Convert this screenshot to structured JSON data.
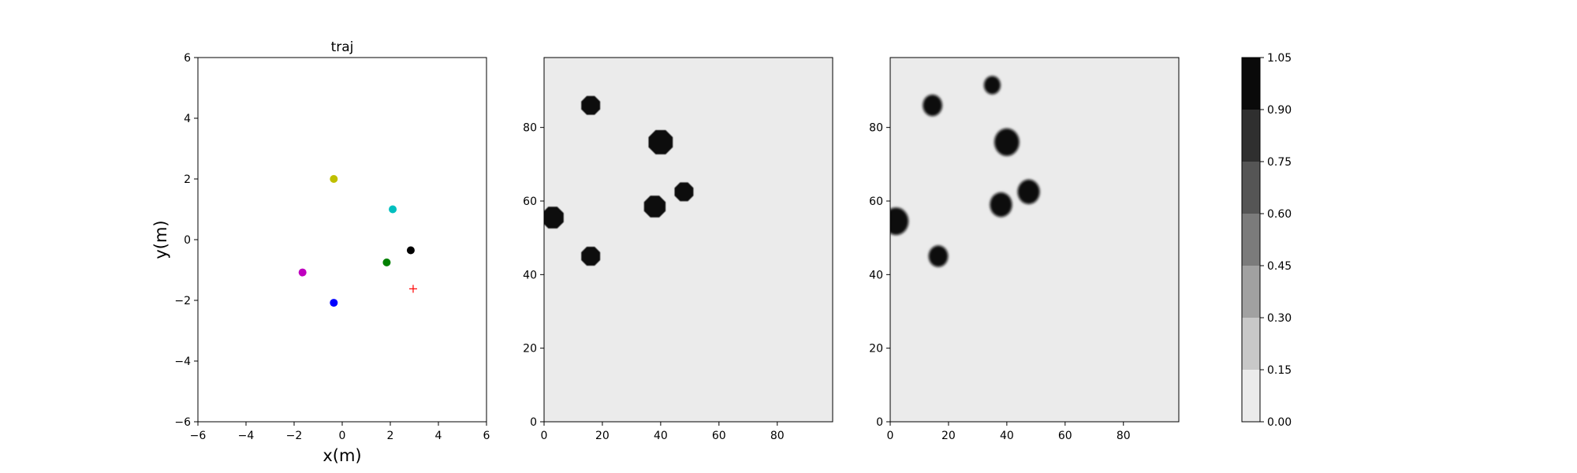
{
  "chart_data": [
    {
      "type": "scatter",
      "title": "traj",
      "xlabel": "x(m)",
      "ylabel": "y(m)",
      "xlim": [
        -6,
        6
      ],
      "ylim": [
        -6,
        6
      ],
      "xticks": [
        -6,
        -4,
        -2,
        0,
        2,
        4,
        6
      ],
      "yticks": [
        -6,
        -4,
        -2,
        0,
        2,
        4,
        6
      ],
      "grid": false,
      "points": [
        {
          "x": -0.35,
          "y": 2.0,
          "color": "#bfbf00",
          "marker": "circle"
        },
        {
          "x": 2.1,
          "y": 1.0,
          "color": "#00bfbf",
          "marker": "circle"
        },
        {
          "x": 2.85,
          "y": -0.35,
          "color": "#000000",
          "marker": "circle"
        },
        {
          "x": 1.85,
          "y": -0.75,
          "color": "#008000",
          "marker": "circle"
        },
        {
          "x": -1.65,
          "y": -1.08,
          "color": "#bf00bf",
          "marker": "circle"
        },
        {
          "x": -0.35,
          "y": -2.08,
          "color": "#0000ff",
          "marker": "circle"
        },
        {
          "x": 2.95,
          "y": -1.62,
          "color": "#ff0000",
          "marker": "plus"
        }
      ]
    },
    {
      "type": "heatmap",
      "xlim": [
        0,
        99
      ],
      "ylim": [
        0,
        99
      ],
      "xticks": [
        0,
        20,
        40,
        60,
        80
      ],
      "yticks": [
        0,
        20,
        40,
        60,
        80
      ],
      "background_value": 0.05,
      "blobs": [
        {
          "x": 16,
          "y": 86,
          "r": 3.5,
          "value": 1.0
        },
        {
          "x": 40,
          "y": 76,
          "r": 4.5,
          "value": 1.0
        },
        {
          "x": 48,
          "y": 62.5,
          "r": 3.5,
          "value": 1.0
        },
        {
          "x": 38,
          "y": 58.5,
          "r": 4.0,
          "value": 1.0
        },
        {
          "x": 3,
          "y": 55.5,
          "r": 4.0,
          "value": 1.0
        },
        {
          "x": 16,
          "y": 45,
          "r": 3.5,
          "value": 1.0
        }
      ]
    },
    {
      "type": "heatmap",
      "xlim": [
        0,
        99
      ],
      "ylim": [
        0,
        99
      ],
      "xticks": [
        0,
        20,
        40,
        60,
        80
      ],
      "yticks": [
        0,
        20,
        40,
        60,
        80
      ],
      "background_value": 0.05,
      "blobs": [
        {
          "x": 35,
          "y": 91.5,
          "r": 3.0,
          "value": 1.0
        },
        {
          "x": 14.5,
          "y": 86,
          "r": 3.5,
          "value": 1.0
        },
        {
          "x": 40,
          "y": 76,
          "r": 4.5,
          "value": 1.0
        },
        {
          "x": 47.5,
          "y": 62.5,
          "r": 4.0,
          "value": 1.0
        },
        {
          "x": 38,
          "y": 59,
          "r": 4.0,
          "value": 1.0
        },
        {
          "x": 2,
          "y": 54.5,
          "r": 4.5,
          "value": 1.0
        },
        {
          "x": 16.5,
          "y": 45,
          "r": 3.5,
          "value": 1.0
        }
      ]
    }
  ],
  "colorbar": {
    "levels": [
      0.0,
      0.15,
      0.3,
      0.45,
      0.6,
      0.75,
      0.9,
      1.05
    ],
    "tick_labels": [
      "0.00",
      "0.15",
      "0.30",
      "0.45",
      "0.60",
      "0.75",
      "0.90",
      "1.05"
    ],
    "colors": [
      "#ebebeb",
      "#c8c8c8",
      "#a1a1a1",
      "#7b7b7b",
      "#555555",
      "#2f2f2f",
      "#0a0a0a"
    ]
  }
}
